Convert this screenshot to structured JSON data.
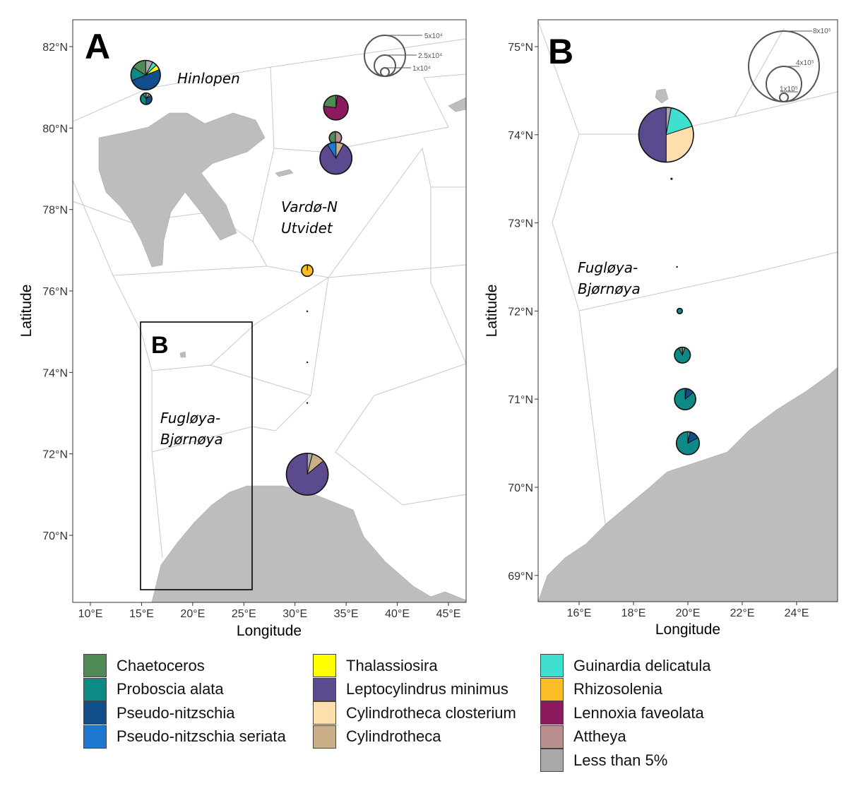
{
  "panels": {
    "A": {
      "letter": "A",
      "xlabel": "Longitude",
      "ylabel": "Latitude",
      "lon_ticks": [
        "10°E",
        "15°E",
        "20°E",
        "25°E",
        "30°E",
        "35°E",
        "40°E",
        "45°E"
      ],
      "lat_ticks": [
        "70°N",
        "72°N",
        "74°N",
        "76°N",
        "78°N",
        "80°N",
        "82°N"
      ],
      "regions": [
        "Hinlopen",
        "Vardø-N",
        "Utvidet",
        "Fugløya-",
        "Bjørnøya"
      ],
      "inset_label": "B",
      "size_legend": [
        "5x10⁴",
        "2.5x10⁴",
        "1x10⁴"
      ]
    },
    "B": {
      "letter": "B",
      "xlabel": "Longitude",
      "ylabel": "Latitude",
      "lon_ticks": [
        "16°E",
        "18°E",
        "20°E",
        "22°E",
        "24°E"
      ],
      "lat_ticks": [
        "69°N",
        "70°N",
        "71°N",
        "72°N",
        "73°N",
        "74°N",
        "75°N"
      ],
      "regions": [
        "Fugløya-",
        "Bjørnøya"
      ],
      "size_legend": [
        "8x10⁵",
        "4x10⁵",
        "1x10⁵"
      ]
    }
  },
  "legend": {
    "items": [
      {
        "label": "Chaetoceros",
        "color": "#4F8A57"
      },
      {
        "label": "Proboscia alata",
        "color": "#0E8A86"
      },
      {
        "label": "Pseudo-nitzschia",
        "color": "#114F8C"
      },
      {
        "label": "Pseudo-nitzschia seriata",
        "color": "#1E78D2"
      },
      {
        "label": "Thalassiosira",
        "color": "#FFFF00"
      },
      {
        "label": "Leptocylindrus minimus",
        "color": "#5B4A8E"
      },
      {
        "label": "Cylindrotheca closterium",
        "color": "#FFDEAE"
      },
      {
        "label": "Cylindrotheca",
        "color": "#C9AE87"
      },
      {
        "label": "Guinardia delicatula",
        "color": "#40E0D0"
      },
      {
        "label": "Rhizosolenia",
        "color": "#FBBD26"
      },
      {
        "label": "Lennoxia faveolata",
        "color": "#8B1A5F"
      },
      {
        "label": "Attheya",
        "color": "#BC8F8F"
      },
      {
        "label": "Less than 5%",
        "color": "#A8A8A8"
      }
    ]
  },
  "chart_data": [
    {
      "type": "pie-map",
      "panel": "A",
      "xlim": [
        8.4,
        46.8
      ],
      "ylim": [
        68.3,
        82.7
      ],
      "size_legend_values": [
        50000,
        25000,
        10000
      ],
      "pies": [
        {
          "lon": 15.4,
          "lat": 81.3,
          "abundance": 36000,
          "slices": [
            [
              "Less than 5%",
              0.08
            ],
            [
              "Guinardia delicatula",
              0.05
            ],
            [
              "Thalassiosira",
              0.06
            ],
            [
              "Pseudo-nitzschia",
              0.5
            ],
            [
              "Proboscia alata",
              0.15
            ],
            [
              "Chaetoceros",
              0.16
            ]
          ]
        },
        {
          "lon": 15.45,
          "lat": 80.72,
          "abundance": 14000,
          "slices": [
            [
              "Less than 5%",
              0.1
            ],
            [
              "Thalassiosira",
              0.05
            ],
            [
              "Pseudo-nitzschia",
              0.35
            ],
            [
              "Proboscia alata",
              0.4
            ],
            [
              "Chaetoceros",
              0.1
            ]
          ]
        },
        {
          "lon": 34.0,
          "lat": 80.5,
          "abundance": 30000,
          "slices": [
            [
              "Less than 5%",
              0.02
            ],
            [
              "Lennoxia faveolata",
              0.75
            ],
            [
              "Chaetoceros",
              0.23
            ]
          ]
        },
        {
          "lon": 33.95,
          "lat": 79.76,
          "abundance": 15000,
          "slices": [
            [
              "Attheya",
              0.5
            ],
            [
              "Chaetoceros",
              0.5
            ]
          ]
        },
        {
          "lon": 34.0,
          "lat": 79.26,
          "abundance": 39000,
          "slices": [
            [
              "Cylindrotheca",
              0.08
            ],
            [
              "Leptocylindrus minimus",
              0.83
            ],
            [
              "Pseudo-nitzschia seriata",
              0.09
            ]
          ]
        },
        {
          "lon": 31.2,
          "lat": 76.5,
          "abundance": 14000,
          "slices": [
            [
              "Less than 5%",
              0.01
            ],
            [
              "Rhizosolenia",
              0.99
            ]
          ]
        },
        {
          "lon": 31.2,
          "lat": 75.5,
          "abundance": 2000,
          "slices": [
            [
              "Less than 5%",
              1
            ]
          ]
        },
        {
          "lon": 31.2,
          "lat": 74.25,
          "abundance": 800,
          "slices": [
            [
              "Less than 5%",
              1
            ]
          ]
        },
        {
          "lon": 31.2,
          "lat": 73.25,
          "abundance": 800,
          "slices": [
            [
              "Less than 5%",
              1
            ]
          ]
        },
        {
          "lon": 31.2,
          "lat": 71.5,
          "abundance": 51000,
          "slices": [
            [
              "Less than 5%",
              0.04
            ],
            [
              "Cylindrotheca",
              0.1
            ],
            [
              "Leptocylindrus minimus",
              0.86
            ]
          ]
        }
      ]
    },
    {
      "type": "pie-map",
      "panel": "B",
      "xlim": [
        14.5,
        25.5
      ],
      "ylim": [
        68.7,
        75.3
      ],
      "size_legend_values": [
        800000,
        400000,
        100000
      ],
      "pies": [
        {
          "lon": 19.2,
          "lat": 74.0,
          "abundance": 620000,
          "slices": [
            [
              "Less than 5%",
              0.03
            ],
            [
              "Guinardia delicatula",
              0.17
            ],
            [
              "Cylindrotheca closterium",
              0.3
            ],
            [
              "Leptocylindrus minimus",
              0.5
            ]
          ]
        },
        {
          "lon": 19.4,
          "lat": 73.5,
          "abundance": 25000,
          "slices": [
            [
              "Less than 5%",
              1
            ]
          ]
        },
        {
          "lon": 19.6,
          "lat": 72.5,
          "abundance": 15000,
          "slices": [
            [
              "Less than 5%",
              1
            ]
          ]
        },
        {
          "lon": 19.7,
          "lat": 72.0,
          "abundance": 60000,
          "slices": [
            [
              "Proboscia alata",
              1
            ]
          ]
        },
        {
          "lon": 19.8,
          "lat": 71.5,
          "abundance": 180000,
          "slices": [
            [
              "Less than 5%",
              0.05
            ],
            [
              "Proboscia alata",
              0.87
            ],
            [
              "Chaetoceros",
              0.08
            ]
          ]
        },
        {
          "lon": 19.9,
          "lat": 71.0,
          "abundance": 240000,
          "slices": [
            [
              "Less than 5%",
              0.02
            ],
            [
              "Pseudo-nitzschia",
              0.12
            ],
            [
              "Proboscia alata",
              0.86
            ]
          ]
        },
        {
          "lon": 20.0,
          "lat": 70.5,
          "abundance": 260000,
          "slices": [
            [
              "Less than 5%",
              0.03
            ],
            [
              "Pseudo-nitzschia",
              0.14
            ],
            [
              "Proboscia alata",
              0.83
            ]
          ]
        }
      ]
    }
  ]
}
